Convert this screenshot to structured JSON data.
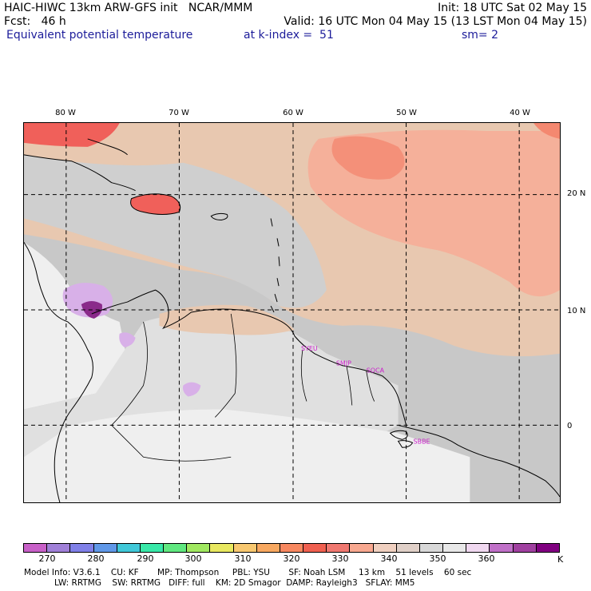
{
  "header": {
    "line1_left": "HAIC-HIWC 13km ARW-GFS init   NCAR/MMM",
    "line1_right": "Init: 18 UTC Sat 02 May 15",
    "line2_left": "Fcst:   46 h",
    "line2_right": "Valid: 16 UTC Mon 04 May 15 (13 LST Mon 04 May 15)",
    "line3_field": "Equivalent potential temperature",
    "line3_level": "at k-index =  51",
    "line3_smooth": "sm= 2"
  },
  "map": {
    "lon_labels": [
      "80 W",
      "70 W",
      "60 W",
      "50 W",
      "40 W"
    ],
    "lat_labels": [
      "20 N",
      "10 N",
      "0"
    ],
    "stations": [
      "SYEU",
      "SMJP",
      "SOCA",
      "SBBE"
    ],
    "palette": {
      "sea_gray": "#c8c8c8",
      "land_light": "#efefef",
      "tan": "#e8c8b0",
      "peach": "#f5b09a",
      "salmon": "#f48870",
      "red": "#f0605a",
      "light_purple": "#d8b0e8",
      "purple": "#b070c8",
      "dark_purple": "#8a2a8a"
    }
  },
  "colorbar": {
    "colors": [
      "#c860c8",
      "#a080d8",
      "#8080e8",
      "#6098e8",
      "#40c8d8",
      "#38e8a8",
      "#60e880",
      "#a0e860",
      "#e8e860",
      "#f8c870",
      "#f8a860",
      "#f88860",
      "#f06050",
      "#f07870",
      "#f8a890",
      "#f0d0c0",
      "#e0d0c8",
      "#d8d8d8",
      "#e8e8e8",
      "#f0d8f0",
      "#c070c8",
      "#a040a0",
      "#800080"
    ],
    "ticks": [
      "270",
      "280",
      "290",
      "300",
      "310",
      "320",
      "330",
      "340",
      "350",
      "360"
    ],
    "unit": "K"
  },
  "model_info": {
    "line1": "Model Info: V3.6.1    CU: KF       MP: Thompson     PBL: YSU       SF: Noah LSM     13 km    51 levels    60 sec",
    "line2": "LW: RRTMG    SW: RRTMG   DIFF: full    KM: 2D Smagor  DAMP: Rayleigh3   SFLAY: MM5"
  }
}
